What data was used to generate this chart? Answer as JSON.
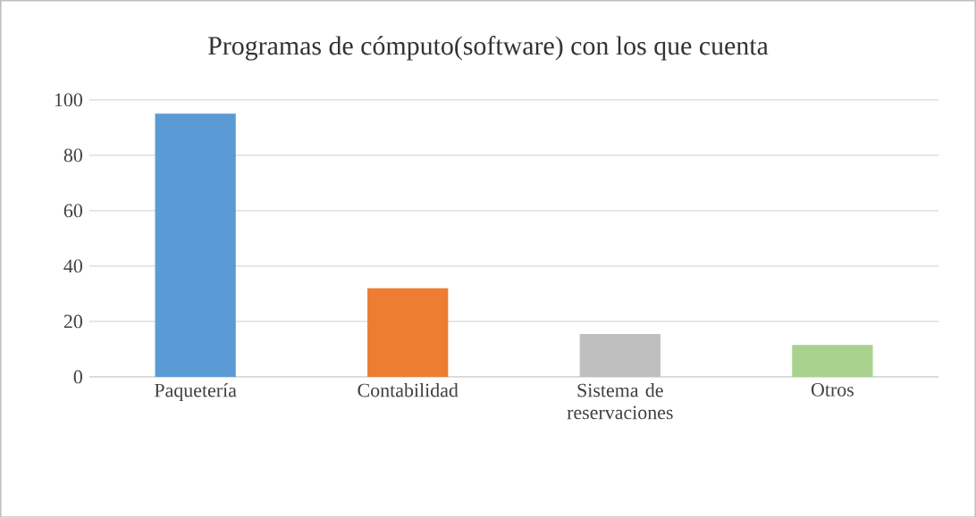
{
  "chart_data": {
    "type": "bar",
    "title": "Programas de cómputo(software) con los que cuenta",
    "categories": [
      "Paquetería",
      "Contabilidad",
      "Sistema de reservaciones",
      "Otros"
    ],
    "values": [
      95,
      32,
      15.5,
      11.5
    ],
    "colors": [
      "#5b9bd5",
      "#ed7d31",
      "#bfbfbf",
      "#a9d18e"
    ],
    "ylim": [
      0,
      100
    ],
    "yticks": [
      0,
      20,
      40,
      60,
      80,
      100
    ],
    "grid": "y"
  }
}
